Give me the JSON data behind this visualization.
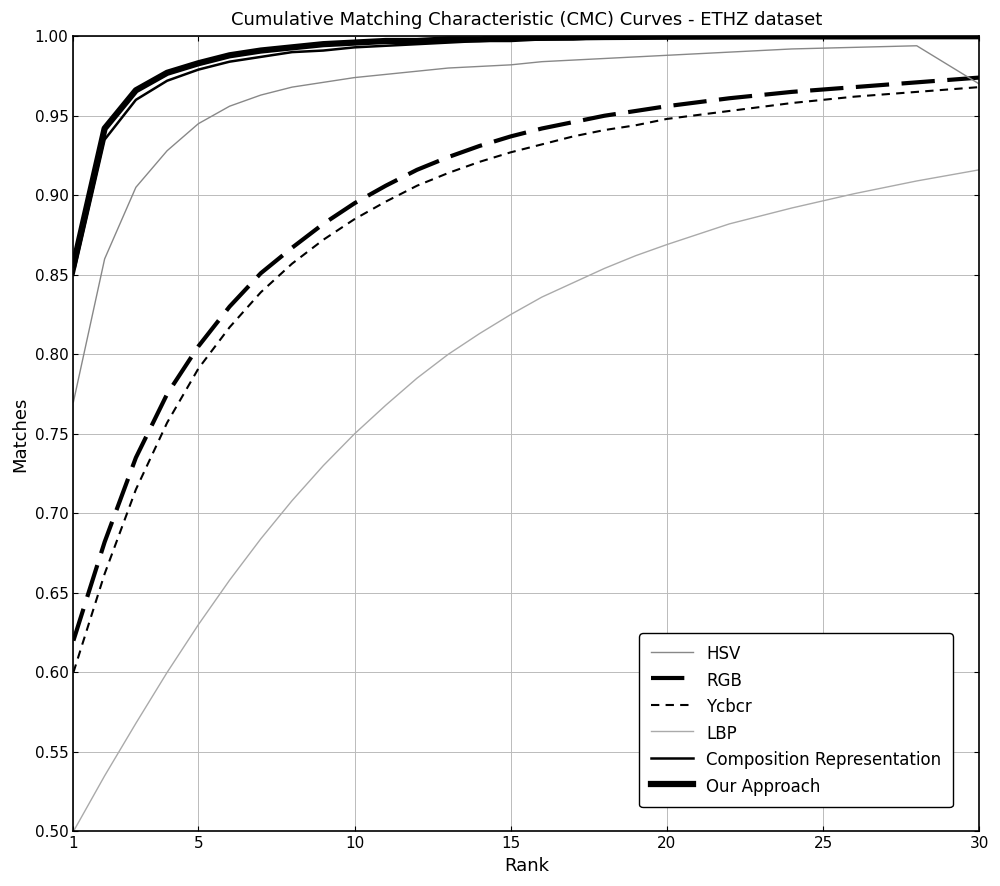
{
  "title": "Cumulative Matching Characteristic (CMC) Curves - ETHZ dataset",
  "xlabel": "Rank",
  "ylabel": "Matches",
  "xlim": [
    1,
    30
  ],
  "ylim": [
    0.5,
    1.0
  ],
  "xticks": [
    1,
    5,
    10,
    15,
    20,
    25,
    30
  ],
  "yticks": [
    0.5,
    0.55,
    0.6,
    0.65,
    0.7,
    0.75,
    0.8,
    0.85,
    0.9,
    0.95,
    1.0
  ],
  "curves": {
    "HSV": {
      "x": [
        1,
        2,
        3,
        4,
        5,
        6,
        7,
        8,
        9,
        10,
        11,
        12,
        13,
        14,
        15,
        16,
        17,
        18,
        19,
        20,
        22,
        24,
        26,
        28,
        30
      ],
      "y": [
        0.77,
        0.86,
        0.905,
        0.928,
        0.945,
        0.956,
        0.963,
        0.968,
        0.971,
        0.974,
        0.976,
        0.978,
        0.98,
        0.981,
        0.982,
        0.984,
        0.985,
        0.986,
        0.987,
        0.988,
        0.99,
        0.992,
        0.993,
        0.994,
        0.97
      ],
      "color": "#888888",
      "linewidth": 1.0,
      "linestyle": "-",
      "label": "HSV"
    },
    "RGB": {
      "x": [
        1,
        2,
        3,
        4,
        5,
        6,
        7,
        8,
        9,
        10,
        11,
        12,
        13,
        14,
        15,
        16,
        17,
        18,
        19,
        20,
        22,
        24,
        26,
        28,
        30
      ],
      "y": [
        0.62,
        0.682,
        0.735,
        0.775,
        0.805,
        0.83,
        0.851,
        0.867,
        0.882,
        0.895,
        0.906,
        0.916,
        0.924,
        0.931,
        0.937,
        0.942,
        0.946,
        0.95,
        0.953,
        0.956,
        0.961,
        0.965,
        0.968,
        0.971,
        0.974
      ],
      "color": "#000000",
      "linewidth": 3.0,
      "linestyle": "--",
      "dash_capstyle": "butt",
      "label": "RGB"
    },
    "Ycbcr": {
      "x": [
        1,
        2,
        3,
        4,
        5,
        6,
        7,
        8,
        9,
        10,
        11,
        12,
        13,
        14,
        15,
        16,
        17,
        18,
        19,
        20,
        22,
        24,
        26,
        28,
        30
      ],
      "y": [
        0.6,
        0.662,
        0.715,
        0.757,
        0.791,
        0.817,
        0.839,
        0.857,
        0.872,
        0.885,
        0.896,
        0.906,
        0.914,
        0.921,
        0.927,
        0.932,
        0.937,
        0.941,
        0.944,
        0.948,
        0.953,
        0.958,
        0.962,
        0.965,
        0.968
      ],
      "color": "#000000",
      "linewidth": 1.5,
      "linestyle": "--",
      "label": "Ycbcr"
    },
    "LBP": {
      "x": [
        1,
        2,
        3,
        4,
        5,
        6,
        7,
        8,
        9,
        10,
        11,
        12,
        13,
        14,
        15,
        16,
        17,
        18,
        19,
        20,
        22,
        24,
        26,
        28,
        30
      ],
      "y": [
        0.5,
        0.535,
        0.568,
        0.6,
        0.63,
        0.658,
        0.684,
        0.708,
        0.73,
        0.75,
        0.768,
        0.785,
        0.8,
        0.813,
        0.825,
        0.836,
        0.845,
        0.854,
        0.862,
        0.869,
        0.882,
        0.892,
        0.901,
        0.909,
        0.916
      ],
      "color": "#aaaaaa",
      "linewidth": 1.0,
      "linestyle": "-",
      "label": "LBP"
    },
    "Composition Representation": {
      "x": [
        1,
        2,
        3,
        4,
        5,
        6,
        7,
        8,
        9,
        10,
        11,
        12,
        13,
        14,
        15,
        16,
        17,
        18,
        19,
        20,
        22,
        24,
        26,
        28,
        30
      ],
      "y": [
        0.85,
        0.935,
        0.96,
        0.972,
        0.979,
        0.984,
        0.987,
        0.99,
        0.991,
        0.993,
        0.994,
        0.995,
        0.996,
        0.997,
        0.997,
        0.998,
        0.998,
        0.999,
        0.999,
        0.999,
        0.9993,
        0.9995,
        0.9997,
        0.9998,
        0.9999
      ],
      "color": "#000000",
      "linewidth": 1.8,
      "linestyle": "-",
      "label": "Composition Representation"
    },
    "Our Approach": {
      "x": [
        1,
        2,
        3,
        4,
        5,
        6,
        7,
        8,
        9,
        10,
        11,
        12,
        13,
        14,
        15,
        16,
        17,
        18,
        19,
        20,
        22,
        24,
        26,
        28,
        30
      ],
      "y": [
        0.856,
        0.942,
        0.966,
        0.977,
        0.983,
        0.988,
        0.991,
        0.993,
        0.995,
        0.996,
        0.997,
        0.997,
        0.998,
        0.998,
        0.999,
        0.999,
        0.9993,
        0.9995,
        0.9996,
        0.9997,
        0.9998,
        0.9999,
        0.9999,
        1.0,
        1.0
      ],
      "color": "#000000",
      "linewidth": 4.5,
      "linestyle": "-",
      "label": "Our Approach"
    }
  },
  "background_color": "#ffffff",
  "grid_color": "#bbbbbb",
  "title_fontsize": 13,
  "label_fontsize": 13,
  "tick_fontsize": 11,
  "legend_fontsize": 12
}
